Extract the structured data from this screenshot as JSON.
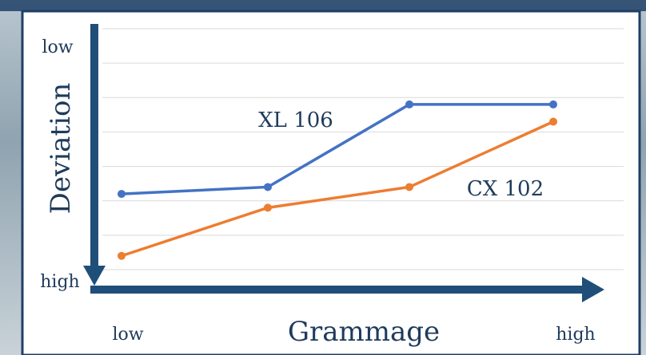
{
  "chart_data": {
    "type": "line",
    "y_label": "Deviation",
    "x_label": "Grammage",
    "y_end_labels": [
      "low",
      "high"
    ],
    "x_end_labels": [
      "low",
      "high"
    ],
    "categories": [
      null,
      null,
      null,
      null
    ],
    "series": [
      {
        "name": "XL 106",
        "color": "#4472c4",
        "values": [
          4.8,
          4.6,
          2.2,
          2.2
        ]
      },
      {
        "name": "CX 102",
        "color": "#ed7d31",
        "values": [
          6.6,
          5.2,
          4.6,
          2.7
        ]
      }
    ],
    "ylim": [
      0,
      7
    ],
    "y_inverted": true,
    "yticks": [
      0,
      1,
      2,
      3,
      4,
      5,
      6,
      7
    ],
    "grid": true
  }
}
